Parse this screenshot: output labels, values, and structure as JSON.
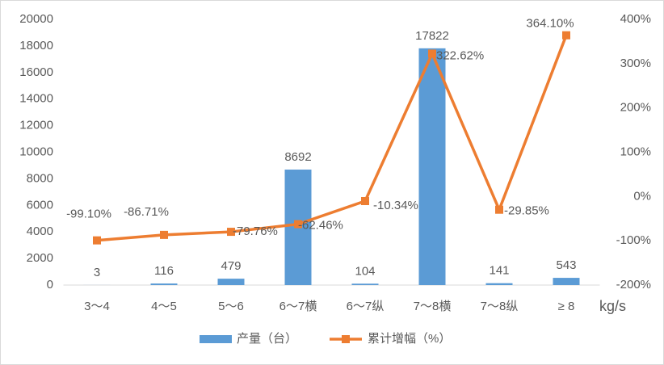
{
  "chart_data": {
    "type": "bar-line",
    "categories": [
      "3～4",
      "4～5",
      "5～6",
      "6～7横",
      "6～7纵",
      "7～8横",
      "7～8纵",
      "≥ 8"
    ],
    "x_label": "kg/s",
    "series": [
      {
        "name": "产量（台）",
        "type": "bar",
        "color": "#5b9bd5",
        "values": [
          3,
          116,
          479,
          8692,
          104,
          17822,
          141,
          543
        ]
      },
      {
        "name": "累计增幅（%）",
        "type": "line",
        "axis": "y2",
        "color": "#ed7d31",
        "values": [
          -99.1,
          -86.71,
          -79.76,
          -62.46,
          -10.34,
          322.62,
          -29.85,
          364.1
        ],
        "value_labels": [
          "-99.10%",
          "-86.71%",
          "-79.76%",
          "-62.46%",
          "-10.34%",
          "322.62%",
          "-29.85%",
          "364.10%"
        ]
      }
    ],
    "ylim": [
      0,
      20000
    ],
    "yticks": [
      0,
      2000,
      4000,
      6000,
      8000,
      10000,
      12000,
      14000,
      16000,
      18000,
      20000
    ],
    "y2lim": [
      -200,
      400
    ],
    "y2ticks": [
      {
        "value": -200,
        "label": "-200%"
      },
      {
        "value": -100,
        "label": "-100%"
      },
      {
        "value": 0,
        "label": "0%"
      },
      {
        "value": 100,
        "label": "100%"
      },
      {
        "value": 200,
        "label": "200%"
      },
      {
        "value": 300,
        "label": "300%"
      },
      {
        "value": 400,
        "label": "400%"
      }
    ],
    "legend": "bottom"
  }
}
